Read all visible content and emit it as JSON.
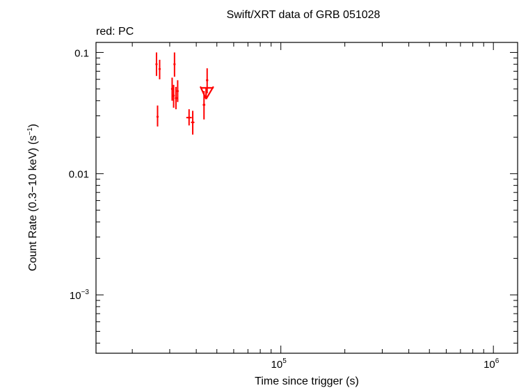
{
  "chart_data": {
    "type": "scatter",
    "title": "Swift/XRT data of GRB 051028",
    "subtitle": "red: PC",
    "xlabel": "Time since trigger (s)",
    "ylabel_main": "Count Rate (0.3−10 keV) (s",
    "ylabel_sup": "−1",
    "ylabel_tail": ")",
    "x_scale": "log",
    "y_scale": "log",
    "xlim": [
      13500,
      1300000
    ],
    "ylim": [
      0.00033,
      0.121
    ],
    "grid": false,
    "x_ticklabels": [
      {
        "value": 100000,
        "base": "10",
        "exp": "5"
      },
      {
        "value": 1000000,
        "base": "10",
        "exp": "6"
      }
    ],
    "y_ticklabels": [
      {
        "value": 0.1,
        "text": "0.1"
      },
      {
        "value": 0.01,
        "text": "0.01"
      },
      {
        "value": 0.001,
        "base": "10",
        "exp": "−3"
      }
    ],
    "series": [
      {
        "color": "#ff0000",
        "points": [
          {
            "x": 26000,
            "xlo": 25800,
            "xhi": 26200,
            "y": 0.08,
            "ylo": 0.064,
            "yhi": 0.1
          },
          {
            "x": 26300,
            "xlo": 26150,
            "xhi": 26450,
            "y": 0.0295,
            "ylo": 0.0245,
            "yhi": 0.0365
          },
          {
            "x": 26900,
            "xlo": 26700,
            "xhi": 27100,
            "y": 0.073,
            "ylo": 0.06,
            "yhi": 0.087
          },
          {
            "x": 30800,
            "xlo": 30600,
            "xhi": 31000,
            "y": 0.05,
            "ylo": 0.04,
            "yhi": 0.062
          },
          {
            "x": 31300,
            "xlo": 31100,
            "xhi": 31500,
            "y": 0.044,
            "ylo": 0.035,
            "yhi": 0.054
          },
          {
            "x": 31600,
            "xlo": 31450,
            "xhi": 31750,
            "y": 0.08,
            "ylo": 0.063,
            "yhi": 0.1
          },
          {
            "x": 32100,
            "xlo": 31900,
            "xhi": 32300,
            "y": 0.042,
            "ylo": 0.034,
            "yhi": 0.052
          },
          {
            "x": 32700,
            "xlo": 32500,
            "xhi": 32900,
            "y": 0.048,
            "ylo": 0.039,
            "yhi": 0.059
          },
          {
            "x": 37000,
            "xlo": 35900,
            "xhi": 38100,
            "y": 0.029,
            "ylo": 0.025,
            "yhi": 0.034
          },
          {
            "x": 38500,
            "xlo": 37800,
            "xhi": 39200,
            "y": 0.0265,
            "ylo": 0.021,
            "yhi": 0.033
          },
          {
            "x": 43500,
            "xlo": 42900,
            "xhi": 44100,
            "y": 0.037,
            "ylo": 0.028,
            "yhi": 0.048
          },
          {
            "x": 45000,
            "xlo": 44500,
            "xhi": 45500,
            "y": 0.059,
            "ylo": 0.046,
            "yhi": 0.074
          }
        ],
        "upper_limits": [
          {
            "x": 44500,
            "xlo": 41800,
            "xhi": 48200,
            "y": 0.051
          }
        ]
      }
    ]
  }
}
